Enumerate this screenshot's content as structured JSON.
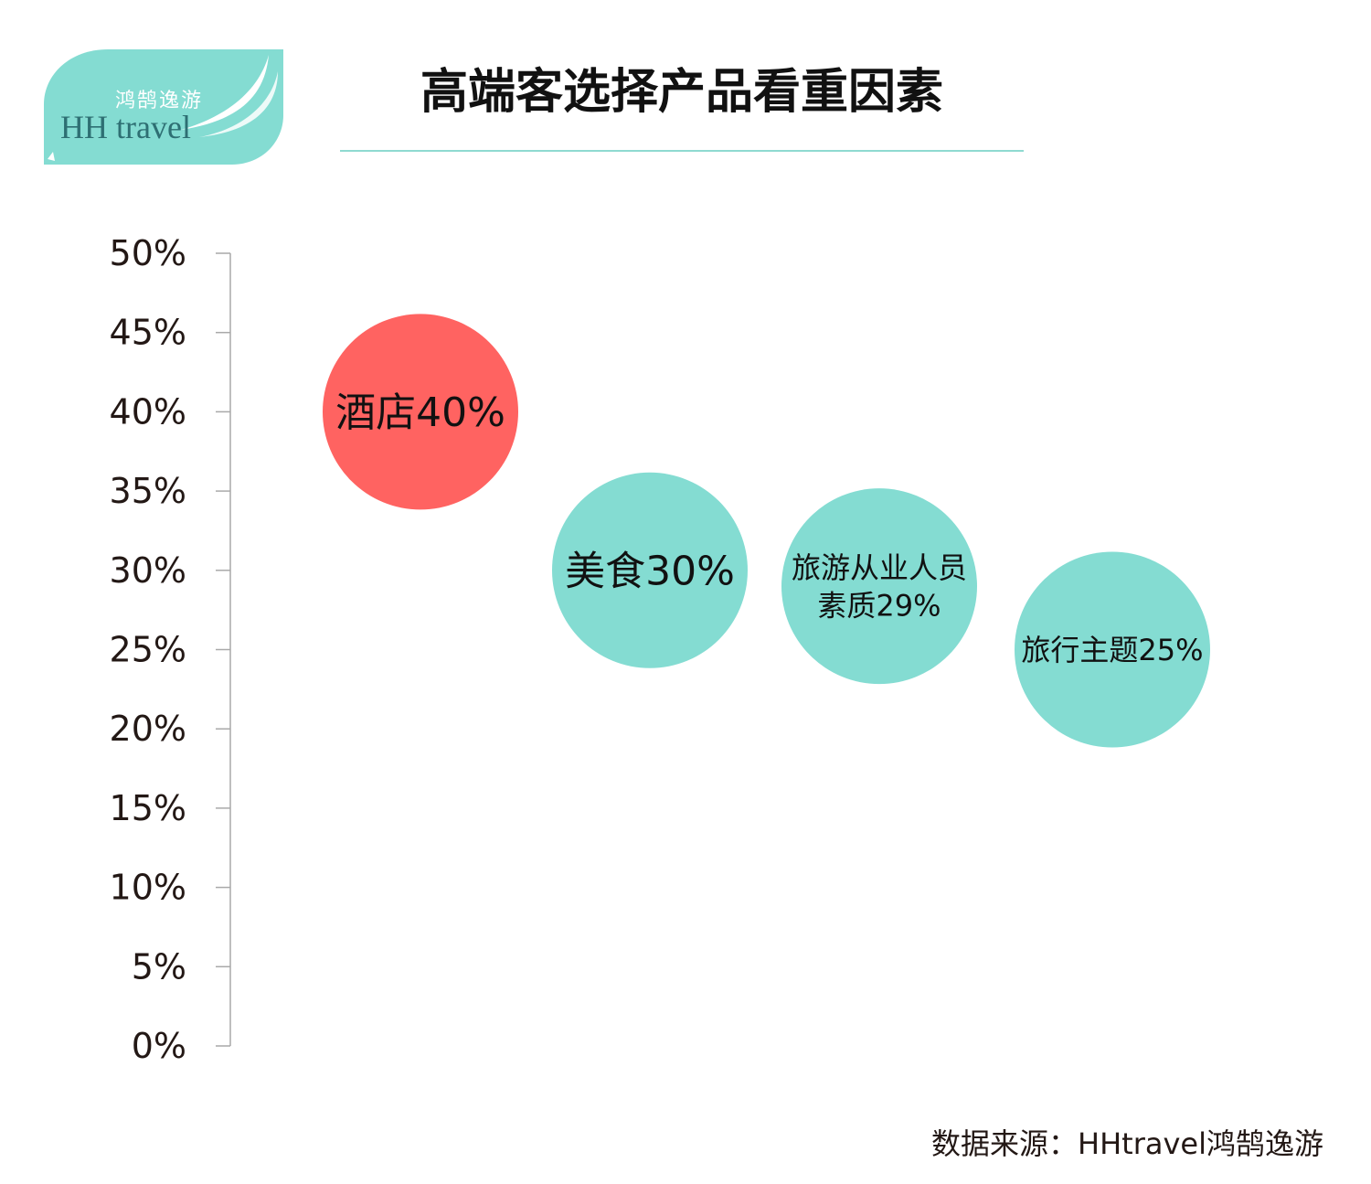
{
  "logo": {
    "cn_text": "鸿鹄逸游",
    "en_text": "HH travel"
  },
  "title": "高端客选择产品看重因素",
  "source": "数据来源：HHtravel鸿鹄逸游",
  "colors": {
    "highlight": "#ff6361",
    "bubble": "#84dcd2",
    "logo_bg": "#84dcd2",
    "axis": "#a9a9a9",
    "title_rule": "#8fdad1"
  },
  "chart_data": {
    "type": "bubble",
    "title": "高端客选择产品看重因素",
    "ylim": [
      0,
      0.5
    ],
    "yticks": [
      {
        "value": 0,
        "label": "0%"
      },
      {
        "value": 0.05,
        "label": "5%"
      },
      {
        "value": 0.1,
        "label": "10%"
      },
      {
        "value": 0.15,
        "label": "15%"
      },
      {
        "value": 0.2,
        "label": "20%"
      },
      {
        "value": 0.25,
        "label": "25%"
      },
      {
        "value": 0.3,
        "label": "30%"
      },
      {
        "value": 0.35,
        "label": "35%"
      },
      {
        "value": 0.4,
        "label": "40%"
      },
      {
        "value": 0.45,
        "label": "45%"
      },
      {
        "value": 0.5,
        "label": "50%"
      }
    ],
    "points": [
      {
        "name": "酒店",
        "value": 0.4,
        "label": [
          "酒店40%"
        ],
        "color": "#ff6361"
      },
      {
        "name": "美食",
        "value": 0.3,
        "label": [
          "美食30%"
        ],
        "color": "#84dcd2"
      },
      {
        "name": "旅游从业人员素质",
        "value": 0.29,
        "label": [
          "旅游从业人员",
          "素质29%"
        ],
        "color": "#84dcd2"
      },
      {
        "name": "旅行主题",
        "value": 0.25,
        "label": [
          "旅行主题25%"
        ],
        "color": "#84dcd2"
      }
    ],
    "grid": false,
    "legend": "none"
  }
}
